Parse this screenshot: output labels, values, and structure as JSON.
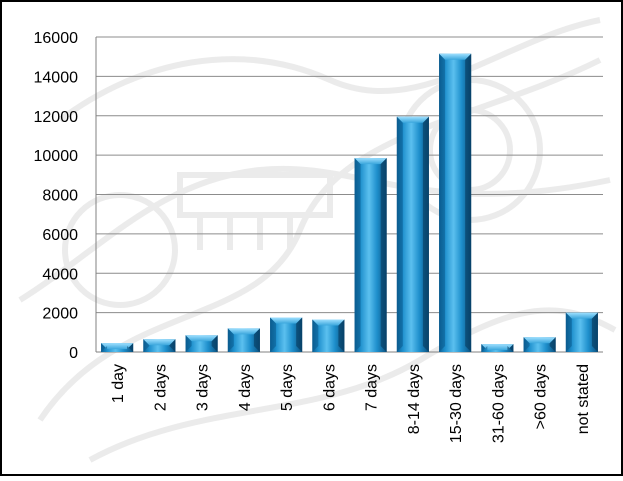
{
  "chart_data": {
    "type": "bar",
    "categories": [
      "1 day",
      "2 days",
      "3 days",
      "4 days",
      "5 days",
      "6 days",
      "7 days",
      "8-14 days",
      "15-30 days",
      "31-60 days",
      ">60 days",
      "not stated"
    ],
    "values": [
      450,
      650,
      850,
      1200,
      1750,
      1650,
      9850,
      11950,
      15150,
      400,
      750,
      2000
    ],
    "ylim": [
      0,
      16000
    ],
    "yticks": [
      0,
      2000,
      4000,
      6000,
      8000,
      10000,
      12000,
      14000,
      16000
    ],
    "grid": true,
    "legend": "none",
    "colors": {
      "bar_light": "#4fb8e8",
      "bar_mid": "#1a90cf",
      "bar_dark": "#0a5a8c",
      "bar_top": "#7fd0f5",
      "gridline": "#8c8c8c",
      "border": "#000000",
      "background_pattern": "#d9d9d9"
    }
  }
}
